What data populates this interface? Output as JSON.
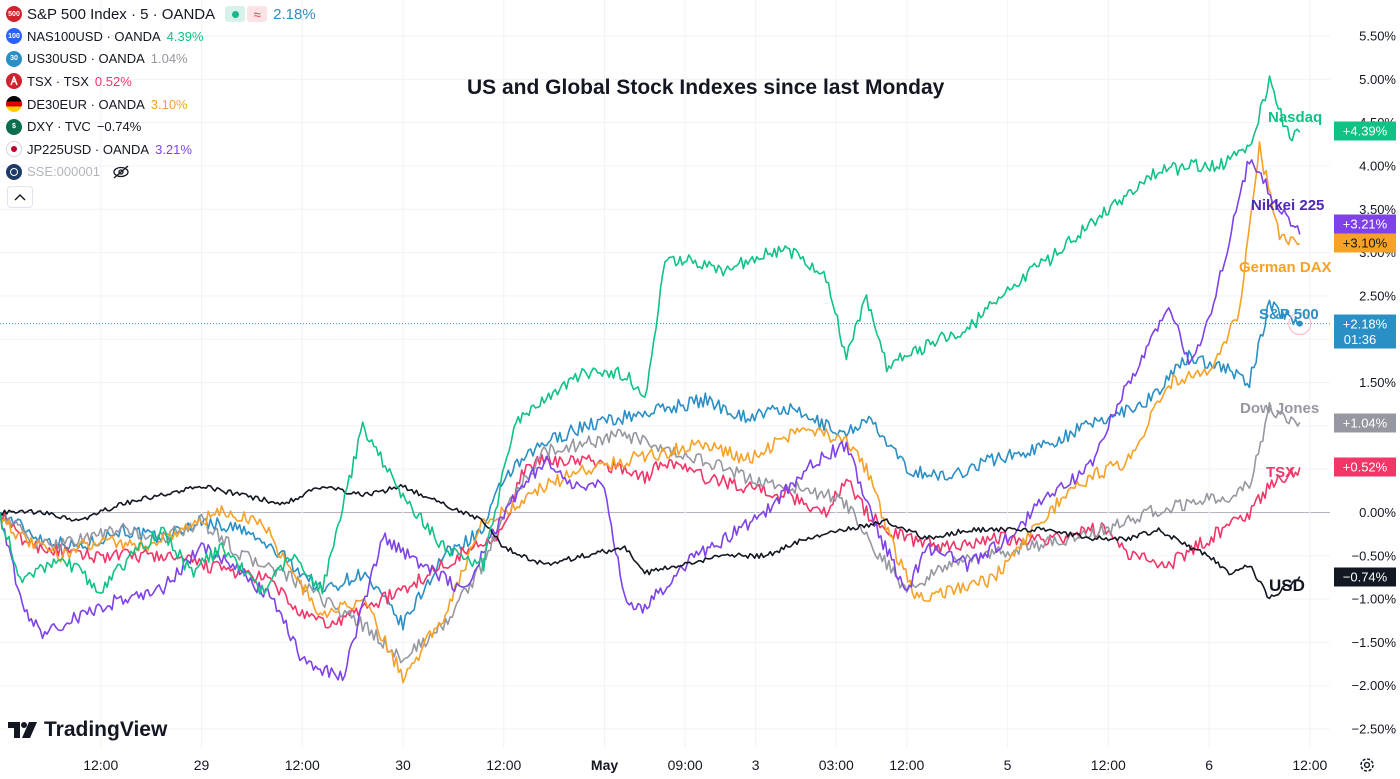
{
  "chart_data": {
    "type": "line",
    "title": "US and Global Stock Indexes since last Monday",
    "ylabel": "",
    "y_unit": "%",
    "ylim": [
      -2.5,
      5.5
    ],
    "y_ticks": [
      5.5,
      5.0,
      4.5,
      4.0,
      3.5,
      3.0,
      2.5,
      2.0,
      1.5,
      1.0,
      0.5,
      0.0,
      -0.5,
      -1.0,
      -1.5,
      -2.0,
      -2.5
    ],
    "y_tick_labels": [
      "5.50%",
      "5.00%",
      "4.50%",
      "4.00%",
      "3.50%",
      "3.00%",
      "2.50%",
      "",
      "1.50%",
      "",
      "",
      "0.00%",
      "−0.50%",
      "−1.00%",
      "−1.50%",
      "−2.00%",
      "−2.50%"
    ],
    "x_tick_labels": [
      {
        "label": "12:00",
        "t": 0.5
      },
      {
        "label": "29",
        "t": 1.0
      },
      {
        "label": "12:00",
        "t": 1.5
      },
      {
        "label": "30",
        "t": 2.0
      },
      {
        "label": "12:00",
        "t": 2.5
      },
      {
        "label": "May",
        "t": 3.0,
        "bold": true
      },
      {
        "label": "09:00",
        "t": 3.4
      },
      {
        "label": "3",
        "t": 3.75
      },
      {
        "label": "03:00",
        "t": 4.15
      },
      {
        "label": "12:00",
        "t": 4.5
      },
      {
        "label": "5",
        "t": 5.0
      },
      {
        "label": "12:00",
        "t": 5.5
      },
      {
        "label": "6",
        "t": 6.0
      },
      {
        "label": "12:00",
        "t": 6.5
      }
    ],
    "grid": true,
    "series": [
      {
        "name": "Nasdaq",
        "symbol": "NAS100USD · OANDA",
        "change": "4.39%",
        "badge": "+4.39%",
        "color": "#10c283",
        "t": [
          0,
          0.1,
          0.3,
          0.5,
          0.65,
          0.8,
          0.95,
          1.1,
          1.3,
          1.45,
          1.6,
          1.8,
          2.0,
          2.2,
          2.4,
          2.55,
          2.7,
          2.9,
          3.1,
          3.2,
          3.3,
          3.45,
          3.6,
          3.8,
          3.95,
          4.1,
          4.2,
          4.3,
          4.4,
          4.5,
          4.65,
          4.8,
          5.0,
          5.2,
          5.35,
          5.5,
          5.7,
          5.9,
          6.05,
          6.2,
          6.3,
          6.4,
          6.45
        ],
        "v": [
          0.0,
          -0.8,
          -0.5,
          -0.9,
          -0.5,
          -0.2,
          -0.7,
          -0.4,
          -0.9,
          -0.5,
          -0.9,
          1.0,
          0.2,
          -0.4,
          -0.6,
          1.0,
          1.3,
          1.6,
          1.6,
          1.3,
          2.9,
          2.9,
          2.8,
          3.0,
          3.0,
          2.7,
          1.8,
          2.5,
          1.7,
          1.8,
          2.0,
          2.1,
          2.6,
          2.9,
          3.2,
          3.5,
          3.9,
          4.0,
          4.0,
          4.2,
          5.0,
          4.3,
          4.39
        ]
      },
      {
        "name": "Nikkei 225",
        "symbol": "JP225USD · OANDA",
        "change": "3.21%",
        "badge": "+3.21%",
        "color": "#7e42e8",
        "t": [
          0,
          0.1,
          0.2,
          0.4,
          0.6,
          0.8,
          1.0,
          1.2,
          1.35,
          1.5,
          1.7,
          1.9,
          2.1,
          2.3,
          2.5,
          2.7,
          2.85,
          3.0,
          3.1,
          3.2,
          3.4,
          3.6,
          3.8,
          4.0,
          4.2,
          4.35,
          4.5,
          4.6,
          4.8,
          5.0,
          5.2,
          5.4,
          5.6,
          5.8,
          5.9,
          6.0,
          6.2,
          6.35,
          6.45
        ],
        "v": [
          0.0,
          -1.0,
          -1.4,
          -1.2,
          -1.0,
          -0.9,
          -0.4,
          -0.7,
          -1.0,
          -1.7,
          -1.9,
          -0.3,
          -0.6,
          -0.9,
          0.0,
          0.6,
          0.3,
          0.3,
          -1.0,
          -1.1,
          -0.6,
          -0.3,
          0.0,
          0.5,
          0.8,
          -0.2,
          -0.9,
          -0.4,
          -0.6,
          -0.3,
          0.2,
          0.5,
          1.5,
          2.4,
          1.7,
          2.2,
          4.1,
          3.5,
          3.21
        ]
      },
      {
        "name": "German DAX",
        "symbol": "DE30EUR · OANDA",
        "change": "3.10%",
        "badge": "+3.10%",
        "color": "#f7a126",
        "t": [
          0,
          0.1,
          0.3,
          0.5,
          0.7,
          0.9,
          1.1,
          1.3,
          1.45,
          1.6,
          1.8,
          2.0,
          2.2,
          2.4,
          2.5,
          2.7,
          2.9,
          3.1,
          3.3,
          3.5,
          3.7,
          4.0,
          4.2,
          4.3,
          4.45,
          4.55,
          4.7,
          4.9,
          5.0,
          5.2,
          5.4,
          5.6,
          5.8,
          6.0,
          6.15,
          6.25,
          6.35,
          6.45
        ],
        "v": [
          0.0,
          -0.3,
          -0.5,
          -0.3,
          -0.4,
          -0.2,
          0.0,
          -0.1,
          -0.7,
          -1.2,
          -1.0,
          -1.9,
          -1.2,
          -0.1,
          0.0,
          0.3,
          0.5,
          0.6,
          0.7,
          0.8,
          0.6,
          1.0,
          0.8,
          0.5,
          -0.5,
          -1.0,
          -0.9,
          -0.8,
          -0.6,
          0.0,
          0.4,
          0.6,
          1.5,
          1.6,
          2.3,
          4.2,
          3.2,
          3.1
        ]
      },
      {
        "name": "S&P 500",
        "symbol": "S&P 500 Index · 5 · OANDA",
        "change": "2.18%",
        "badge": "+2.18%",
        "sub_badge": "01:36",
        "color": "#2a8fc4",
        "t": [
          0,
          0.2,
          0.4,
          0.6,
          0.8,
          1.0,
          1.2,
          1.4,
          1.6,
          1.8,
          2.0,
          2.2,
          2.4,
          2.5,
          2.7,
          2.9,
          3.1,
          3.3,
          3.5,
          3.7,
          3.9,
          4.1,
          4.2,
          4.3,
          4.5,
          4.7,
          4.9,
          5.1,
          5.3,
          5.5,
          5.7,
          5.9,
          6.05,
          6.2,
          6.3,
          6.45
        ],
        "v": [
          0.0,
          -0.3,
          -0.4,
          -0.2,
          -0.3,
          -0.1,
          -0.2,
          -0.5,
          -0.9,
          -0.7,
          -1.3,
          -0.5,
          -0.2,
          0.4,
          0.8,
          1.0,
          1.1,
          1.2,
          1.3,
          1.1,
          1.2,
          1.0,
          0.9,
          1.1,
          0.5,
          0.4,
          0.6,
          0.7,
          0.9,
          1.1,
          1.3,
          1.8,
          1.7,
          1.5,
          2.4,
          2.18
        ]
      },
      {
        "name": "Dow Jones",
        "symbol": "US30USD · OANDA",
        "change": "1.04%",
        "badge": "+1.04%",
        "color": "#9598a1",
        "t": [
          0,
          0.2,
          0.4,
          0.6,
          0.8,
          1.0,
          1.2,
          1.4,
          1.6,
          1.8,
          2.0,
          2.2,
          2.4,
          2.5,
          2.7,
          2.9,
          3.1,
          3.3,
          3.5,
          3.7,
          3.9,
          4.1,
          4.2,
          4.3,
          4.5,
          4.7,
          4.9,
          5.1,
          5.3,
          5.5,
          5.7,
          5.9,
          6.1,
          6.2,
          6.3,
          6.45
        ],
        "v": [
          0.0,
          -0.4,
          -0.3,
          -0.2,
          -0.3,
          -0.1,
          -0.5,
          -0.7,
          -1.0,
          -1.3,
          -1.7,
          -1.3,
          -0.6,
          0.0,
          0.7,
          0.8,
          0.9,
          0.7,
          0.6,
          0.4,
          0.3,
          0.2,
          0.1,
          -0.3,
          -0.9,
          -0.6,
          -0.5,
          -0.4,
          -0.3,
          -0.2,
          0.0,
          0.1,
          0.2,
          0.3,
          1.2,
          1.04
        ]
      },
      {
        "name": "TSX",
        "symbol": "TSX · TSX",
        "change": "0.52%",
        "badge": "+0.52%",
        "color": "#f23668",
        "t": [
          0,
          0.1,
          0.2,
          0.4,
          0.6,
          0.8,
          1.0,
          1.2,
          1.35,
          1.5,
          1.65,
          1.8,
          2.0,
          2.2,
          2.35,
          2.5,
          2.6,
          2.7,
          2.9,
          3.1,
          3.2,
          3.3,
          3.4,
          3.5,
          3.7,
          3.9,
          4.1,
          4.2,
          4.3,
          4.4,
          4.5,
          4.7,
          4.9,
          5.1,
          5.3,
          5.4,
          5.5,
          5.6,
          5.8,
          6.0,
          6.2,
          6.3,
          6.45
        ],
        "v": [
          0.0,
          -0.3,
          -0.4,
          -0.5,
          -0.5,
          -0.5,
          -0.6,
          -0.7,
          -0.8,
          -1.2,
          -1.3,
          -1.1,
          -0.9,
          -0.6,
          -0.4,
          -0.2,
          0.5,
          0.6,
          0.6,
          0.5,
          0.4,
          0.6,
          0.5,
          0.4,
          0.3,
          0.2,
          0.0,
          0.4,
          0.0,
          -0.2,
          -0.3,
          -0.4,
          -0.3,
          -0.3,
          -0.3,
          -0.2,
          -0.2,
          -0.5,
          -0.6,
          -0.3,
          0.0,
          0.3,
          0.52
        ]
      },
      {
        "name": "USD",
        "symbol": "DXY · TVC",
        "change": "−0.74%",
        "badge": "−0.74%",
        "color": "#131722",
        "t": [
          0,
          0.2,
          0.4,
          0.6,
          0.8,
          1.0,
          1.2,
          1.4,
          1.6,
          1.8,
          2.0,
          2.2,
          2.4,
          2.5,
          2.7,
          2.9,
          3.1,
          3.2,
          3.4,
          3.6,
          3.8,
          4.0,
          4.2,
          4.4,
          4.6,
          4.8,
          5.0,
          5.2,
          5.4,
          5.6,
          5.75,
          5.9,
          6.0,
          6.1,
          6.2,
          6.3,
          6.45
        ],
        "v": [
          0.0,
          0.0,
          -0.1,
          0.1,
          0.2,
          0.3,
          0.2,
          0.1,
          0.3,
          0.2,
          0.3,
          0.1,
          -0.1,
          -0.4,
          -0.6,
          -0.5,
          -0.4,
          -0.7,
          -0.6,
          -0.5,
          -0.5,
          -0.3,
          -0.2,
          -0.1,
          -0.3,
          -0.2,
          -0.2,
          -0.2,
          -0.3,
          -0.3,
          -0.2,
          -0.4,
          -0.5,
          -0.7,
          -0.6,
          -1.0,
          -0.74
        ]
      }
    ],
    "last_price_line": {
      "series": "S&P 500",
      "value": 2.18
    }
  },
  "legend": {
    "main": {
      "icon": "500",
      "name": "S&P 500 Index · 5 · OANDA",
      "value": "2.18%",
      "icon_color": "#d0232e",
      "value_color": "#2a8fc4"
    },
    "items": [
      {
        "icon": "100",
        "name": "NAS100USD · OANDA",
        "value": "4.39%",
        "icon_color": "#2962ff",
        "value_color": "#10c283"
      },
      {
        "icon": "30",
        "name": "US30USD · OANDA",
        "value": "1.04%",
        "icon_color": "#2a8fc4",
        "value_color": "#9598a1"
      },
      {
        "icon": "tsx-icon",
        "name": "TSX · TSX",
        "value": "0.52%",
        "icon_color": "#d0232e",
        "value_color": "#f23668"
      },
      {
        "icon": "germany-flag-icon",
        "name": "DE30EUR · OANDA",
        "value": "3.10%",
        "icon_color": "#dd0000",
        "value_color": "#f7a126"
      },
      {
        "icon": "$",
        "name": "DXY · TVC",
        "value": "−0.74%",
        "icon_color": "#0d6d4f",
        "value_color": "#131722"
      },
      {
        "icon": "japan-flag-icon",
        "name": "JP225USD · OANDA",
        "value": "3.21%",
        "icon_color": "#ffffff",
        "value_color": "#7e42e8"
      },
      {
        "icon": "sse-icon",
        "name": "SSE:000001",
        "value": "",
        "icon_color": "#1e3a66",
        "value_color": "#b2b5be",
        "hidden": true
      }
    ]
  },
  "branding": {
    "logo_text": "TradingView"
  }
}
